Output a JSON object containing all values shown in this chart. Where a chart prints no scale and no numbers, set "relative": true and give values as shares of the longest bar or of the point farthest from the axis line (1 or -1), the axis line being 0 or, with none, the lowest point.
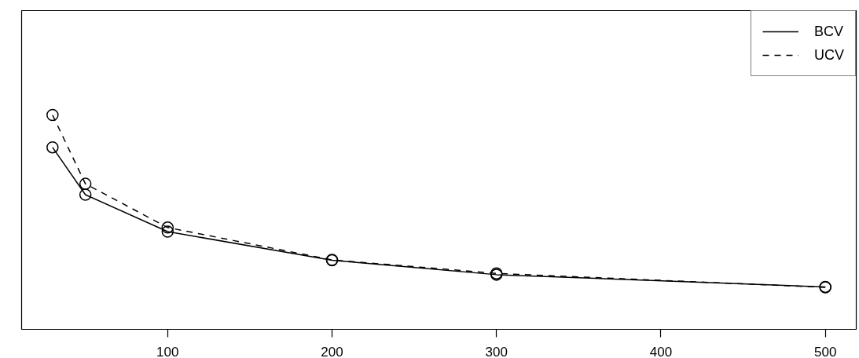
{
  "chart_data": {
    "type": "line",
    "x": [
      30,
      50,
      100,
      200,
      300,
      500
    ],
    "xlim": [
      11.2,
      518.8
    ],
    "xticks": [
      100,
      200,
      300,
      400,
      500
    ],
    "relative": true,
    "marker": "circle",
    "legend": "top right",
    "series": [
      {
        "name": "BCV",
        "color": "#000000",
        "line_style": "solid",
        "values": [
          0.849,
          0.628,
          0.456,
          0.322,
          0.255,
          0.198
        ]
      },
      {
        "name": "UCV",
        "color": "#000000",
        "line_style": "dashed",
        "values": [
          1.0,
          0.679,
          0.475,
          0.324,
          0.261,
          0.196
        ]
      }
    ]
  }
}
